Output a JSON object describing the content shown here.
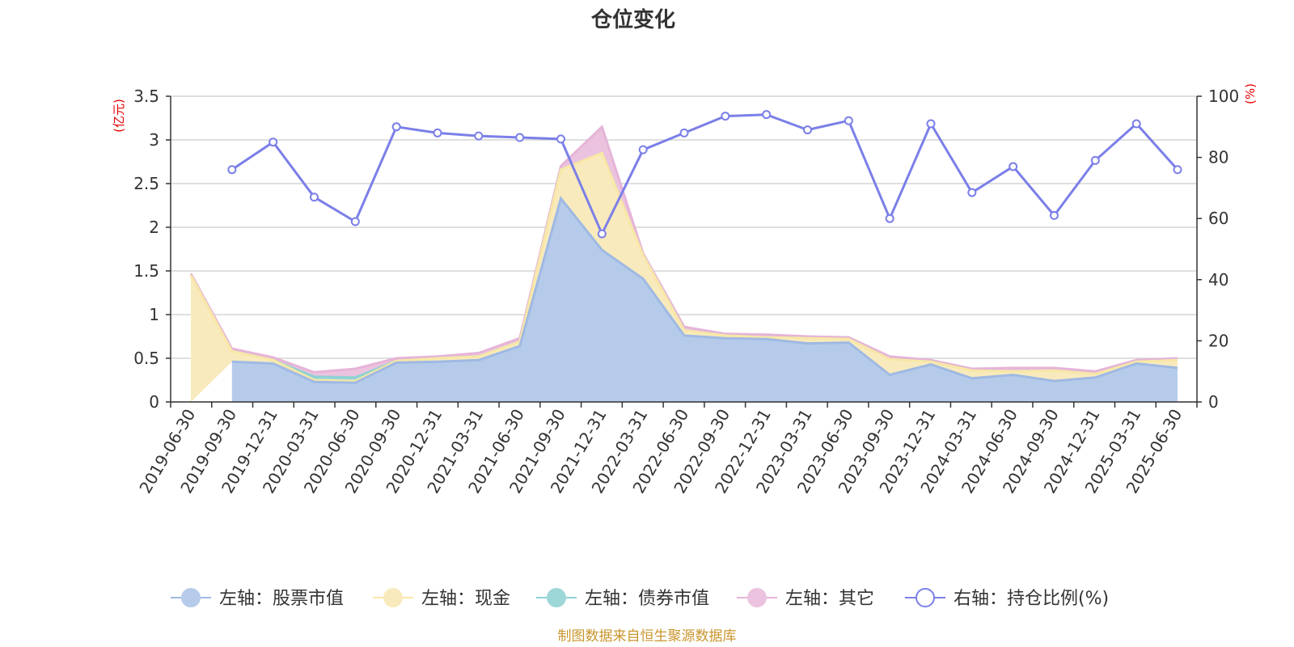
{
  "chart_data": {
    "type": "area",
    "title": "仓位变化",
    "left_axis": {
      "unit": "(亿元)",
      "ticks": [
        "0",
        "0.5",
        "1",
        "1.5",
        "2",
        "2.5",
        "3",
        "3.5"
      ],
      "range": [
        0,
        3.5
      ]
    },
    "right_axis": {
      "unit": "(%)",
      "ticks": [
        "0",
        "20",
        "40",
        "60",
        "80",
        "100"
      ],
      "range": [
        0,
        100
      ]
    },
    "categories": [
      "2019-06-30",
      "2019-09-30",
      "2019-12-31",
      "2020-03-31",
      "2020-06-30",
      "2020-09-30",
      "2020-12-31",
      "2021-03-31",
      "2021-06-30",
      "2021-09-30",
      "2021-12-31",
      "2022-03-31",
      "2022-06-30",
      "2022-09-30",
      "2022-12-31",
      "2023-03-31",
      "2023-06-30",
      "2023-09-30",
      "2023-12-31",
      "2024-03-31",
      "2024-06-30",
      "2024-09-30",
      "2024-12-31",
      "2025-03-31",
      "2025-06-30"
    ],
    "series": [
      {
        "name": "左轴：股票市值",
        "axis": "left",
        "color": "#9fb9e3",
        "fill": "#b6cbea",
        "values": [
          null,
          0.46,
          0.44,
          0.23,
          0.22,
          0.45,
          0.46,
          0.48,
          0.64,
          2.33,
          1.74,
          1.41,
          0.76,
          0.73,
          0.72,
          0.67,
          0.68,
          0.31,
          0.43,
          0.27,
          0.31,
          0.24,
          0.28,
          0.44,
          0.39
        ]
      },
      {
        "name": "左轴：现金",
        "axis": "left",
        "color": "#f8e7a6",
        "fill": "#f8eabc",
        "values": [
          1.45,
          0.12,
          0.04,
          0.02,
          0.02,
          0.02,
          0.04,
          0.04,
          0.05,
          0.33,
          1.11,
          0.27,
          0.06,
          0.03,
          0.02,
          0.06,
          0.04,
          0.18,
          0.03,
          0.09,
          0.04,
          0.12,
          0.04,
          0.02,
          0.09
        ]
      },
      {
        "name": "左轴：债券市值",
        "axis": "left",
        "color": "#8fd1d3",
        "fill": "#9ed7d8",
        "values": [
          null,
          0.0,
          0.0,
          0.04,
          0.04,
          0.0,
          0.0,
          0.0,
          0.0,
          0.0,
          0.0,
          0.0,
          0.0,
          0.0,
          0.0,
          0.0,
          0.0,
          0.0,
          0.0,
          0.0,
          0.0,
          0.0,
          0.0,
          0.0,
          0.0
        ]
      },
      {
        "name": "左轴：其它",
        "axis": "left",
        "color": "#e6b4d8",
        "fill": "#ebc3de",
        "values": [
          0.02,
          0.03,
          0.03,
          0.05,
          0.1,
          0.03,
          0.02,
          0.04,
          0.04,
          0.04,
          0.3,
          0.02,
          0.04,
          0.02,
          0.03,
          0.02,
          0.02,
          0.03,
          0.02,
          0.02,
          0.04,
          0.03,
          0.03,
          0.02,
          0.02
        ]
      },
      {
        "name": "右轴：持仓比例(%)",
        "axis": "right",
        "color": "#7b7fe8",
        "type": "line",
        "values": [
          null,
          76,
          85,
          67,
          59,
          90,
          88,
          87,
          86.5,
          86,
          55,
          82.5,
          88,
          93.5,
          94,
          89,
          92,
          60,
          91,
          68.5,
          77,
          61,
          79,
          91,
          76
        ]
      }
    ],
    "legend_position": "bottom",
    "grid": true
  },
  "source": "制图数据来自恒生聚源数据库"
}
